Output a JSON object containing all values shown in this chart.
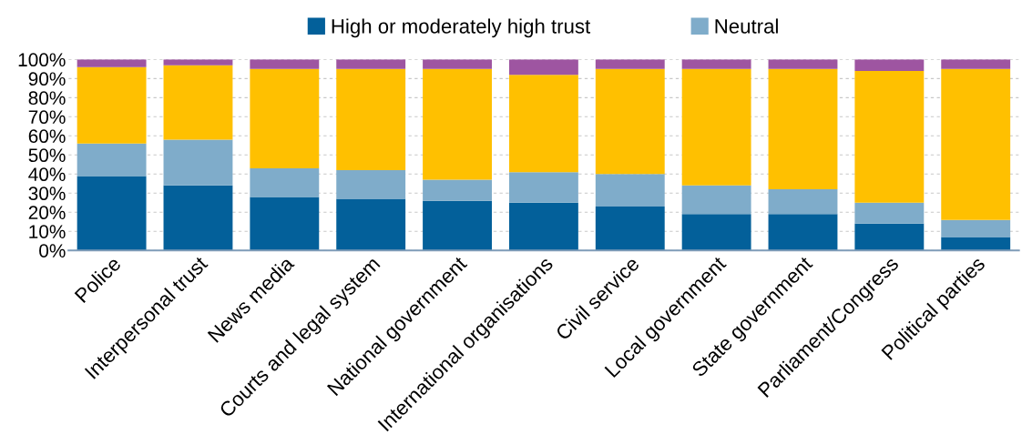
{
  "chart_data": {
    "type": "bar",
    "stacked": true,
    "categories": [
      "Police",
      "Interpersonal trust",
      "News media",
      "Courts and legal system",
      "National government",
      "International organisations",
      "Civil service",
      "Local government",
      "State government",
      "Parliament/Congress",
      "Political parties"
    ],
    "series": [
      {
        "name": "High or moderately high trust",
        "color": "#03609a",
        "values": [
          39,
          34,
          28,
          27,
          26,
          25,
          23,
          19,
          19,
          14,
          7
        ]
      },
      {
        "name": "Neutral",
        "color": "#7facca",
        "values": [
          17,
          24,
          15,
          15,
          11,
          16,
          17,
          15,
          13,
          11,
          9
        ]
      },
      {
        "color": "#ffc000",
        "values": [
          40,
          39,
          52,
          53,
          58,
          51,
          55,
          61,
          63,
          69,
          79
        ]
      },
      {
        "color": "#9e55a1",
        "values": [
          4,
          3,
          5,
          5,
          5,
          8,
          5,
          5,
          5,
          6,
          5
        ]
      }
    ],
    "ylim": [
      0,
      100
    ],
    "yticks": [
      {
        "value": 0,
        "label": "0%"
      },
      {
        "value": 10,
        "label": "10%"
      },
      {
        "value": 20,
        "label": "20%"
      },
      {
        "value": 30,
        "label": "30%"
      },
      {
        "value": 40,
        "label": "40%"
      },
      {
        "value": 50,
        "label": "50%"
      },
      {
        "value": 60,
        "label": "60%"
      },
      {
        "value": 70,
        "label": "70%"
      },
      {
        "value": 80,
        "label": "80%"
      },
      {
        "value": 90,
        "label": "90%"
      },
      {
        "value": 100,
        "label": "100%"
      }
    ],
    "grid": "y",
    "legend": "top"
  }
}
